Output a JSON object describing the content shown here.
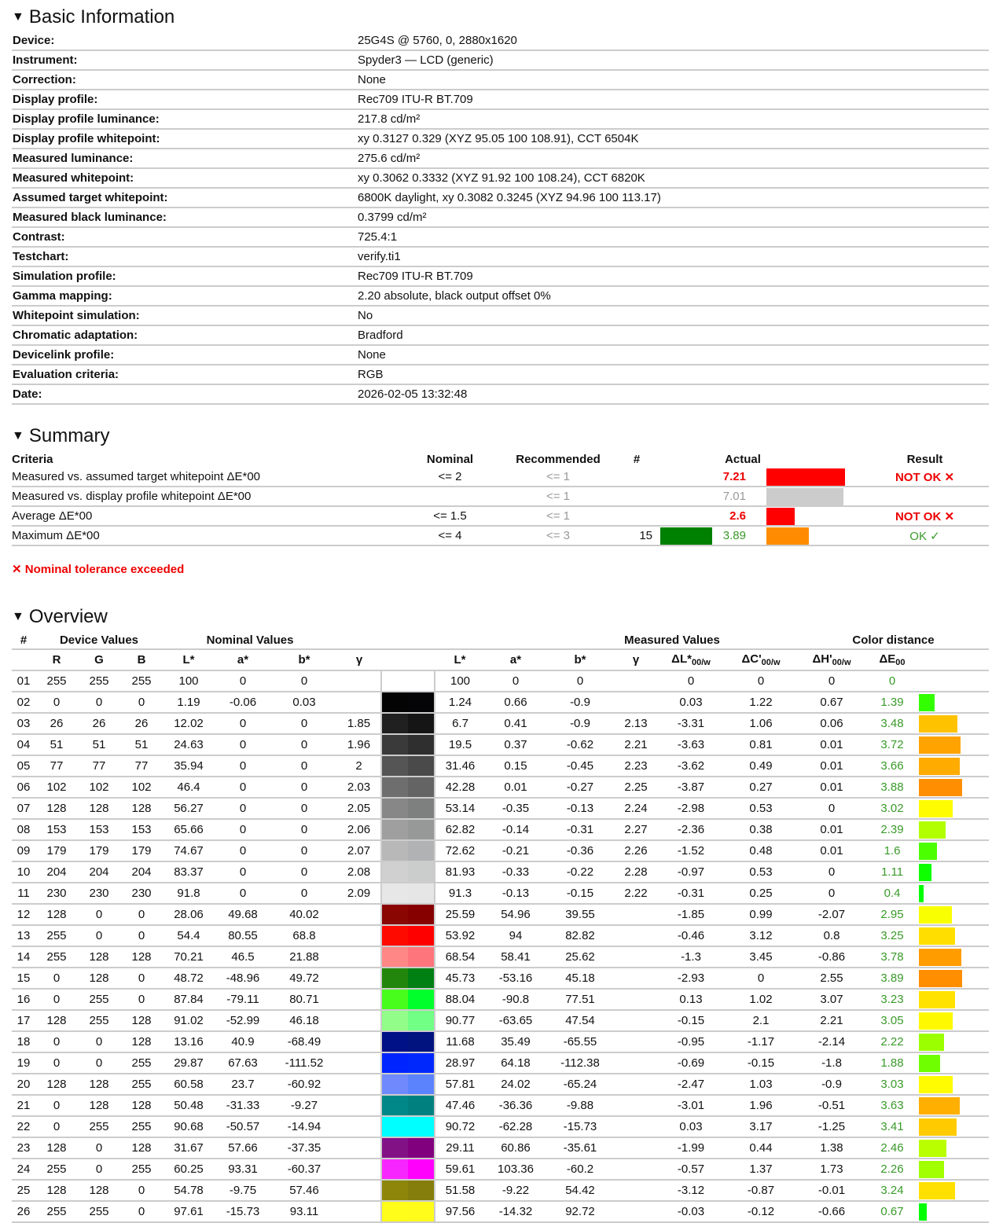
{
  "basic": {
    "title": "Basic Information",
    "rows": [
      [
        "Device:",
        "25G4S @ 5760, 0, 2880x1620"
      ],
      [
        "Instrument:",
        "Spyder3 — LCD (generic)"
      ],
      [
        "Correction:",
        "None"
      ],
      [
        "Display profile:",
        "Rec709 ITU-R BT.709"
      ],
      [
        "Display profile luminance:",
        "217.8 cd/m²"
      ],
      [
        "Display profile whitepoint:",
        "xy 0.3127 0.329 (XYZ 95.05 100 108.91), CCT 6504K"
      ],
      [
        "Measured luminance:",
        "275.6 cd/m²"
      ],
      [
        "Measured whitepoint:",
        "xy 0.3062 0.3332 (XYZ 91.92 100 108.24), CCT 6820K"
      ],
      [
        "Assumed target whitepoint:",
        "6800K daylight, xy 0.3082 0.3245 (XYZ 94.96 100 113.17)"
      ],
      [
        "Measured black luminance:",
        "0.3799 cd/m²"
      ],
      [
        "Contrast:",
        "725.4:1"
      ],
      [
        "Testchart:",
        "verify.ti1"
      ],
      [
        "Simulation profile:",
        "Rec709 ITU-R BT.709"
      ],
      [
        "Gamma mapping:",
        "2.20 absolute, black output offset 0%"
      ],
      [
        "Whitepoint simulation:",
        "No"
      ],
      [
        "Chromatic adaptation:",
        "Bradford"
      ],
      [
        "Devicelink profile:",
        "None"
      ],
      [
        "Evaluation criteria:",
        "RGB"
      ],
      [
        "Date:",
        "2026-02-05 13:32:48"
      ]
    ]
  },
  "summary": {
    "title": "Summary",
    "headers": [
      "Criteria",
      "Nominal",
      "Recommended",
      "#",
      "Actual",
      "Result"
    ],
    "rows": [
      {
        "criteria": "Measured vs. assumed target whitepoint ΔE*00",
        "nominal": "<= 2",
        "recommended": "<= 1",
        "num": "",
        "actual": "7.21",
        "status": "fail",
        "bar_color": "#ff0000",
        "result": "NOT OK ✕"
      },
      {
        "criteria": "Measured vs. display profile whitepoint ΔE*00",
        "nominal": "",
        "recommended": "<= 1",
        "num": "",
        "actual": "7.01",
        "status": "info",
        "bar_color": "#cccccc",
        "result": ""
      },
      {
        "criteria": "Average ΔE*00",
        "nominal": "<= 1.5",
        "recommended": "<= 1",
        "num": "",
        "actual": "2.6",
        "status": "fail",
        "bar_color": "#ff0000",
        "result": "NOT OK ✕"
      },
      {
        "criteria": "Maximum ΔE*00",
        "nominal": "<= 4",
        "recommended": "<= 3",
        "num": "15",
        "swatch": "#008000",
        "actual": "3.89",
        "status": "ok",
        "bar_color": "#ff8c00",
        "result": "OK ✓"
      }
    ],
    "note": "✕ Nominal tolerance exceeded"
  },
  "overview": {
    "title": "Overview",
    "groups": [
      "#",
      "Device Values",
      "Nominal Values",
      "Measured Values",
      "Color distance"
    ],
    "cols": [
      "R",
      "G",
      "B",
      "L*",
      "a*",
      "b*",
      "γ",
      "L*",
      "a*",
      "b*",
      "γ",
      "ΔL*",
      "ΔC'",
      "ΔH'",
      "ΔE"
    ],
    "sub": "00/w",
    "sub_de": "00",
    "rows": [
      [
        "01",
        255,
        255,
        255,
        100,
        0,
        0,
        "",
        100,
        0,
        0,
        "",
        0,
        0,
        0,
        0
      ],
      [
        "02",
        0,
        0,
        0,
        1.19,
        -0.06,
        0.03,
        "",
        1.24,
        0.66,
        -0.9,
        "",
        0.03,
        1.22,
        0.67,
        1.39
      ],
      [
        "03",
        26,
        26,
        26,
        12.02,
        0,
        0,
        1.85,
        6.7,
        0.41,
        -0.9,
        2.13,
        -3.31,
        1.06,
        0.06,
        3.48
      ],
      [
        "04",
        51,
        51,
        51,
        24.63,
        0,
        0,
        1.96,
        19.5,
        0.37,
        -0.62,
        2.21,
        -3.63,
        0.81,
        0.01,
        3.72
      ],
      [
        "05",
        77,
        77,
        77,
        35.94,
        0,
        0,
        2,
        31.46,
        0.15,
        -0.45,
        2.23,
        -3.62,
        0.49,
        0.01,
        3.66
      ],
      [
        "06",
        102,
        102,
        102,
        46.4,
        0,
        0,
        2.03,
        42.28,
        0.01,
        -0.27,
        2.25,
        -3.87,
        0.27,
        0.01,
        3.88
      ],
      [
        "07",
        128,
        128,
        128,
        56.27,
        0,
        0,
        2.05,
        53.14,
        -0.35,
        -0.13,
        2.24,
        -2.98,
        0.53,
        0,
        3.02
      ],
      [
        "08",
        153,
        153,
        153,
        65.66,
        0,
        0,
        2.06,
        62.82,
        -0.14,
        -0.31,
        2.27,
        -2.36,
        0.38,
        0.01,
        2.39
      ],
      [
        "09",
        179,
        179,
        179,
        74.67,
        0,
        0,
        2.07,
        72.62,
        -0.21,
        -0.36,
        2.26,
        -1.52,
        0.48,
        0.01,
        1.6
      ],
      [
        "10",
        204,
        204,
        204,
        83.37,
        0,
        0,
        2.08,
        81.93,
        -0.33,
        -0.22,
        2.28,
        -0.97,
        0.53,
        0,
        1.11
      ],
      [
        "11",
        230,
        230,
        230,
        91.8,
        0,
        0,
        2.09,
        91.3,
        -0.13,
        -0.15,
        2.22,
        -0.31,
        0.25,
        0,
        0.4
      ],
      [
        "12",
        128,
        0,
        0,
        28.06,
        49.68,
        40.02,
        "",
        25.59,
        54.96,
        39.55,
        "",
        -1.85,
        0.99,
        -2.07,
        2.95
      ],
      [
        "13",
        255,
        0,
        0,
        54.4,
        80.55,
        68.8,
        "",
        53.92,
        94,
        82.82,
        "",
        -0.46,
        3.12,
        0.8,
        3.25
      ],
      [
        "14",
        255,
        128,
        128,
        70.21,
        46.5,
        21.88,
        "",
        68.54,
        58.41,
        25.62,
        "",
        -1.3,
        3.45,
        -0.86,
        3.78
      ],
      [
        "15",
        0,
        128,
        0,
        48.72,
        -48.96,
        49.72,
        "",
        45.73,
        -53.16,
        45.18,
        "",
        -2.93,
        0,
        2.55,
        3.89
      ],
      [
        "16",
        0,
        255,
        0,
        87.84,
        -79.11,
        80.71,
        "",
        88.04,
        -90.8,
        77.51,
        "",
        0.13,
        1.02,
        3.07,
        3.23
      ],
      [
        "17",
        128,
        255,
        128,
        91.02,
        -52.99,
        46.18,
        "",
        90.77,
        -63.65,
        47.54,
        "",
        -0.15,
        2.1,
        2.21,
        3.05
      ],
      [
        "18",
        0,
        0,
        128,
        13.16,
        40.9,
        -68.49,
        "",
        11.68,
        35.49,
        -65.55,
        "",
        -0.95,
        -1.17,
        -2.14,
        2.22
      ],
      [
        "19",
        0,
        0,
        255,
        29.87,
        67.63,
        -111.52,
        "",
        28.97,
        64.18,
        -112.38,
        "",
        -0.69,
        -0.15,
        -1.8,
        1.88
      ],
      [
        "20",
        128,
        128,
        255,
        60.58,
        23.7,
        -60.92,
        "",
        57.81,
        24.02,
        -65.24,
        "",
        -2.47,
        1.03,
        -0.9,
        3.03
      ],
      [
        "21",
        0,
        128,
        128,
        50.48,
        -31.33,
        -9.27,
        "",
        47.46,
        -36.36,
        -9.88,
        "",
        -3.01,
        1.96,
        -0.51,
        3.63
      ],
      [
        "22",
        0,
        255,
        255,
        90.68,
        -50.57,
        -14.94,
        "",
        90.72,
        -62.28,
        -15.73,
        "",
        0.03,
        3.17,
        -1.25,
        3.41
      ],
      [
        "23",
        128,
        0,
        128,
        31.67,
        57.66,
        -37.35,
        "",
        29.11,
        60.86,
        -35.61,
        "",
        -1.99,
        0.44,
        1.38,
        2.46
      ],
      [
        "24",
        255,
        0,
        255,
        60.25,
        93.31,
        -60.37,
        "",
        59.61,
        103.36,
        -60.2,
        "",
        -0.57,
        1.37,
        1.73,
        2.26
      ],
      [
        "25",
        128,
        128,
        0,
        54.78,
        -9.75,
        57.46,
        "",
        51.58,
        -9.22,
        54.42,
        "",
        -3.12,
        -0.87,
        -0.01,
        3.24
      ],
      [
        "26",
        255,
        255,
        0,
        97.61,
        -15.73,
        93.11,
        "",
        97.56,
        -14.32,
        92.72,
        "",
        -0.03,
        -0.12,
        -0.66,
        0.67
      ]
    ]
  }
}
